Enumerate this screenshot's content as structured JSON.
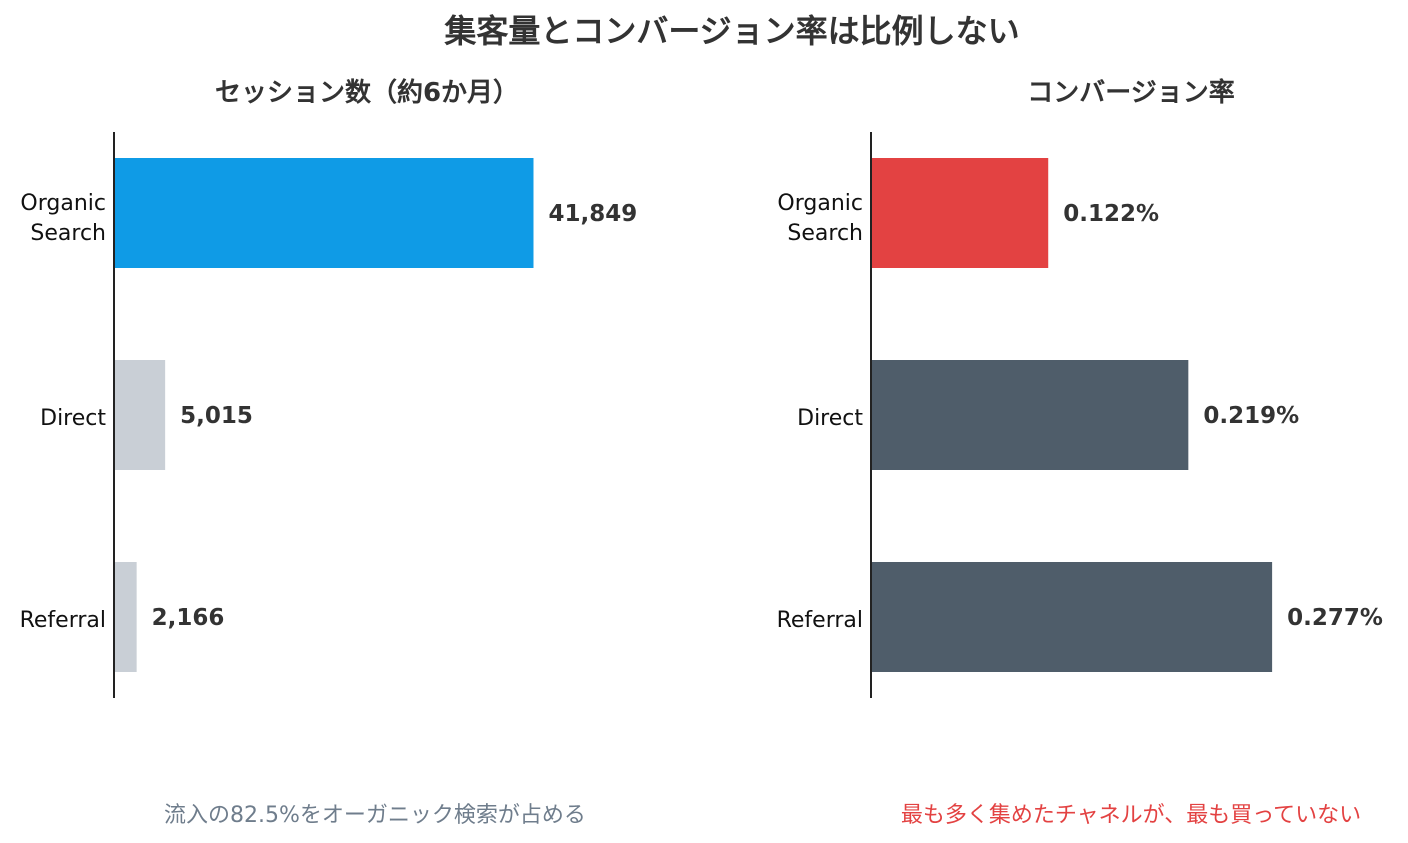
{
  "title": "集客量とコンバージョン率は比例しない",
  "chart_data": [
    {
      "type": "bar",
      "orientation": "horizontal",
      "title": "セッション数（約6か月）",
      "categories": [
        "Organic Search",
        "Direct",
        "Referral"
      ],
      "values": [
        41849,
        5015,
        2166
      ],
      "value_labels": [
        "41,849",
        "5,015",
        "2,166"
      ],
      "xlim": [
        0,
        62000
      ],
      "colors": [
        "#0f9be6",
        "#c9cfd6",
        "#c9cfd6"
      ],
      "axis_visible": false,
      "grid": false,
      "annotation": "流入の82.5%をオーガニック検索が占める",
      "annotation_color": "#6f7d8c"
    },
    {
      "type": "bar",
      "orientation": "horizontal",
      "title": "コンバージョン率",
      "categories": [
        "Organic Search",
        "Direct",
        "Referral"
      ],
      "values": [
        0.122,
        0.219,
        0.277
      ],
      "value_labels": [
        "0.122%",
        "0.219%",
        "0.277%"
      ],
      "xlim": [
        0,
        0.36
      ],
      "colors": [
        "#e34242",
        "#4f5d6a",
        "#4f5d6a"
      ],
      "axis_visible": false,
      "grid": false,
      "annotation": "最も多く集めたチャネルが、最も買っていない",
      "annotation_color": "#e34242"
    }
  ]
}
